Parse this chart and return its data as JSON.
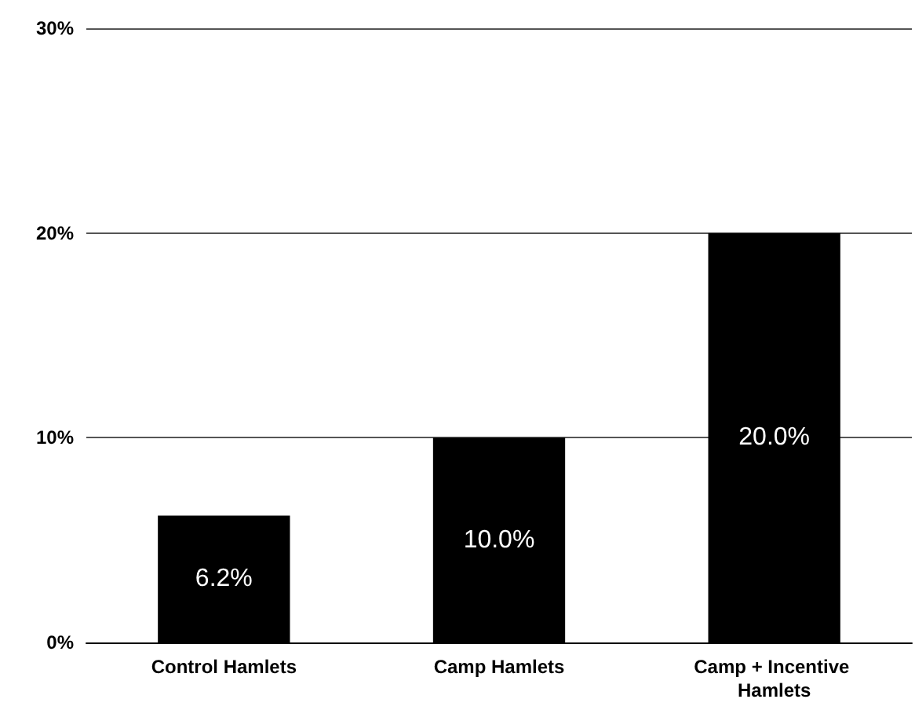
{
  "chart_data": {
    "type": "bar",
    "categories": [
      "Control Hamlets",
      "Camp Hamlets",
      "Camp + Incentive Hamlets"
    ],
    "values": [
      6.2,
      10.0,
      20.0
    ],
    "color": "#000000",
    "value_labels": [
      "6.2%",
      "10.0%",
      "20.0%"
    ],
    "ylim": [
      0,
      30
    ],
    "yticks": [
      {
        "value": 0,
        "label": "0%"
      },
      {
        "value": 10,
        "label": "10%"
      },
      {
        "value": 20,
        "label": "20%"
      },
      {
        "value": 30,
        "label": "30%"
      }
    ],
    "grid": "y"
  }
}
